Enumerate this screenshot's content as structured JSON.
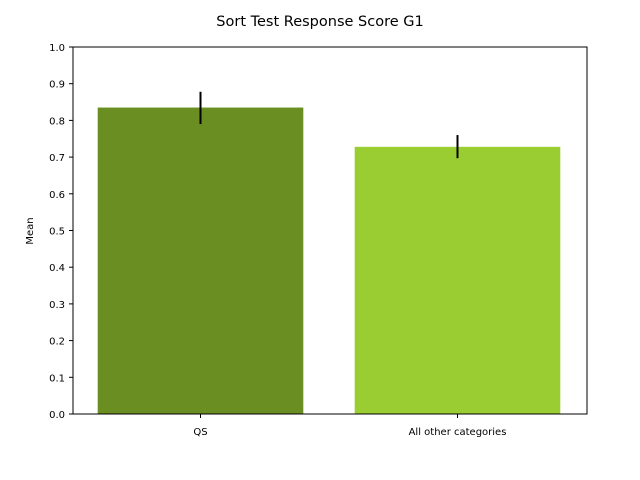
{
  "chart_data": {
    "type": "bar",
    "title": "Sort Test Response Score G1",
    "xlabel": "",
    "ylabel": "Mean",
    "categories": [
      "QS",
      "All other categories"
    ],
    "values": [
      0.835,
      0.728
    ],
    "error_low": [
      0.79,
      0.697
    ],
    "error_high": [
      0.878,
      0.76
    ],
    "bar_colors": [
      "#6B8E23",
      "#9ACD32"
    ],
    "ylim": [
      0.0,
      1.0
    ],
    "yticks": [
      "0.0",
      "0.1",
      "0.2",
      "0.3",
      "0.4",
      "0.5",
      "0.6",
      "0.7",
      "0.8",
      "0.9",
      "1.0"
    ],
    "grid": false
  }
}
